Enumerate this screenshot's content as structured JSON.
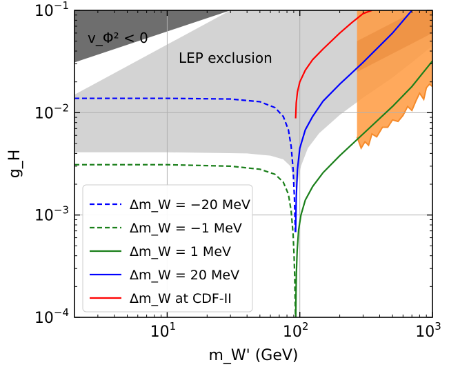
{
  "chart_data": {
    "type": "line",
    "xscale": "log",
    "yscale": "log",
    "xlim": [
      2,
      1000
    ],
    "ylim": [
      0.0001,
      0.1
    ],
    "grid": true,
    "xlabel": "m_W' (GeV)",
    "ylabel": "g_H",
    "xticks": [
      {
        "base": "10",
        "exp": "1"
      },
      {
        "base": "10",
        "exp": "2"
      },
      {
        "base": "10",
        "exp": "3"
      }
    ],
    "yticks": [
      {
        "base": "10",
        "exp": "−4"
      },
      {
        "base": "10",
        "exp": "−3"
      },
      {
        "base": "10",
        "exp": "−2"
      },
      {
        "base": "10",
        "exp": "−1"
      }
    ],
    "annotations": {
      "vacuum": "v_Φ² < 0",
      "lep": "LEP exclusion"
    },
    "legend_position": "lower-left",
    "colors": {
      "blue": "#0000ff",
      "green": "#1a7f1a",
      "red": "#ff0000",
      "orange": "#ff9a40",
      "lep_gray": "#d3d3d3",
      "vacuum_gray": "#6e6e6e",
      "grid": "#b0b0b0"
    },
    "regions": [
      {
        "name": "v_Φ² < 0",
        "color": "#6e6e6e",
        "polygon": [
          [
            2,
            0.1
          ],
          [
            2,
            0.031
          ],
          [
            30,
            0.1
          ]
        ]
      },
      {
        "name": "LEP exclusion",
        "color": "#d3d3d3",
        "upper": [
          [
            2,
            0.015
          ],
          [
            30,
            0.1
          ],
          [
            1000,
            0.1
          ]
        ],
        "lower": [
          [
            2,
            0.0041
          ],
          [
            10,
            0.0041
          ],
          [
            40,
            0.004
          ],
          [
            60,
            0.0038
          ],
          [
            75,
            0.0035
          ],
          [
            85,
            0.003
          ],
          [
            90,
            0.0022
          ],
          [
            93,
            0.0018
          ],
          [
            97,
            0.0022
          ],
          [
            102,
            0.003
          ],
          [
            115,
            0.0045
          ],
          [
            140,
            0.0063
          ],
          [
            200,
            0.0095
          ],
          [
            300,
            0.014
          ],
          [
            500,
            0.022
          ],
          [
            700,
            0.031
          ],
          [
            1000,
            0.045
          ]
        ]
      },
      {
        "name": "orange band",
        "color": "#ff9a40",
        "upper": [
          [
            270,
            0.1
          ],
          [
            1000,
            0.1
          ]
        ],
        "lower": [
          [
            270,
            0.0058
          ],
          [
            290,
            0.0045
          ],
          [
            310,
            0.0052
          ],
          [
            330,
            0.0048
          ],
          [
            350,
            0.0062
          ],
          [
            380,
            0.0058
          ],
          [
            420,
            0.0072
          ],
          [
            460,
            0.0072
          ],
          [
            500,
            0.0085
          ],
          [
            550,
            0.0082
          ],
          [
            600,
            0.0094
          ],
          [
            650,
            0.0115
          ],
          [
            700,
            0.0105
          ],
          [
            750,
            0.013
          ],
          [
            800,
            0.0155
          ],
          [
            860,
            0.0135
          ],
          [
            900,
            0.0175
          ],
          [
            950,
            0.019
          ],
          [
            1000,
            0.018
          ]
        ]
      }
    ],
    "series": [
      {
        "name": "Δm_W = −20 MeV",
        "color": "#0000ff",
        "style": "dashed",
        "x": [
          2,
          10,
          30,
          50,
          65,
          75,
          82,
          86,
          89,
          91,
          92.5
        ],
        "y": [
          0.0138,
          0.0138,
          0.0136,
          0.0128,
          0.0112,
          0.0092,
          0.0068,
          0.0047,
          0.0028,
          0.0015,
          0.00068
        ]
      },
      {
        "name": "Δm_W = −1 MeV",
        "color": "#1a7f1a",
        "style": "dashed",
        "x": [
          2,
          10,
          30,
          50,
          65,
          75,
          82,
          86,
          89,
          90.5,
          91.5,
          92.2,
          92.8
        ],
        "y": [
          0.0031,
          0.0031,
          0.003,
          0.0028,
          0.0025,
          0.0021,
          0.0016,
          0.0011,
          0.00065,
          0.0004,
          0.00025,
          0.00015,
          0.0001
        ]
      },
      {
        "name": "Δm_W = 1 MeV",
        "color": "#1a7f1a",
        "style": "solid",
        "x": [
          93.2,
          93.6,
          94.2,
          95.5,
          98,
          102,
          110,
          125,
          150,
          200,
          300,
          500,
          700,
          1000
        ],
        "y": [
          0.0001,
          0.00017,
          0.00027,
          0.00045,
          0.00072,
          0.001,
          0.0014,
          0.0019,
          0.0026,
          0.0038,
          0.0062,
          0.0115,
          0.018,
          0.032
        ]
      },
      {
        "name": "Δm_W = 20 MeV",
        "color": "#0000ff",
        "style": "solid",
        "x": [
          93,
          94,
          96,
          100,
          110,
          125,
          150,
          200,
          300,
          500,
          700
        ],
        "y": [
          0.00068,
          0.0015,
          0.0028,
          0.0045,
          0.0068,
          0.0092,
          0.013,
          0.019,
          0.031,
          0.06,
          0.1
        ]
      },
      {
        "name": "Δm_W at CDF-II",
        "color": "#ff0000",
        "style": "solid",
        "x": [
          93,
          94,
          96,
          100,
          110,
          125,
          150,
          200,
          250,
          300,
          350
        ],
        "y": [
          0.0088,
          0.0125,
          0.016,
          0.02,
          0.026,
          0.033,
          0.042,
          0.06,
          0.077,
          0.093,
          0.1
        ]
      }
    ]
  }
}
